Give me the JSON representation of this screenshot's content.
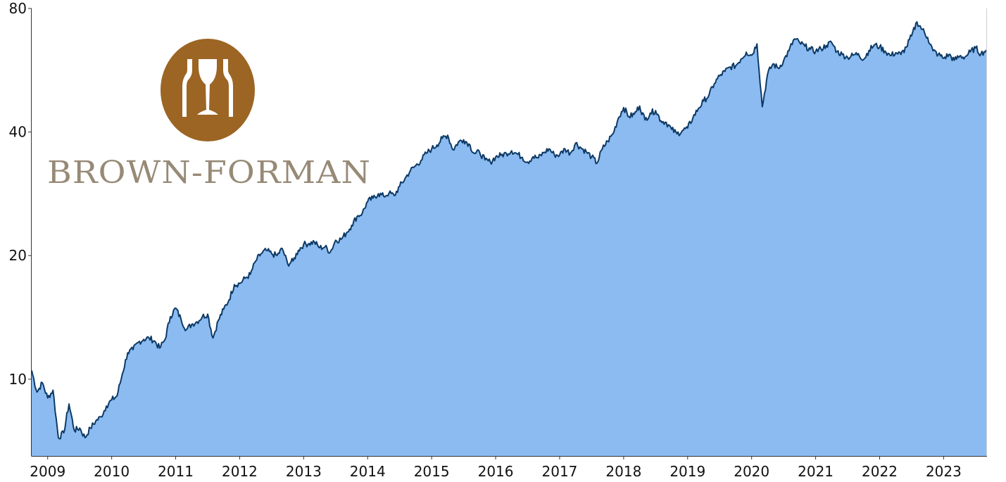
{
  "chart_data": {
    "type": "area",
    "title": "",
    "xlabel": "",
    "ylabel": "",
    "y_scale": "log",
    "ylim": [
      6.5,
      80
    ],
    "xlim": [
      "2008-10",
      "2023-09"
    ],
    "grid": false,
    "legend": "none",
    "y_ticks": [
      "10",
      "20",
      "40",
      "80"
    ],
    "x_ticks": [
      "2009",
      "2010",
      "2011",
      "2012",
      "2013",
      "2014",
      "2015",
      "2016",
      "2017",
      "2018",
      "2019",
      "2020",
      "2021",
      "2022",
      "2023"
    ],
    "colors": {
      "fill": "#8bbbf0",
      "line": "#0d3a66"
    },
    "series": [
      {
        "x": [
          "2008-10",
          "2008-11",
          "2008-12",
          "2009-01",
          "2009-02",
          "2009-03",
          "2009-04",
          "2009-05",
          "2009-06",
          "2009-07",
          "2009-08",
          "2009-09",
          "2009-10",
          "2009-11",
          "2009-12",
          "2010-01",
          "2010-02",
          "2010-03",
          "2010-04",
          "2010-05",
          "2010-06",
          "2010-07",
          "2010-08",
          "2010-09",
          "2010-10",
          "2010-11",
          "2010-12",
          "2011-01",
          "2011-02",
          "2011-03",
          "2011-04",
          "2011-05",
          "2011-06",
          "2011-07",
          "2011-08",
          "2011-09",
          "2011-10",
          "2011-11",
          "2011-12",
          "2012-01",
          "2012-02",
          "2012-03",
          "2012-04",
          "2012-05",
          "2012-06",
          "2012-07",
          "2012-08",
          "2012-09",
          "2012-10",
          "2012-11",
          "2012-12",
          "2013-01",
          "2013-02",
          "2013-03",
          "2013-04",
          "2013-05",
          "2013-06",
          "2013-07",
          "2013-08",
          "2013-09",
          "2013-10",
          "2013-11",
          "2013-12",
          "2014-01",
          "2014-02",
          "2014-03",
          "2014-04",
          "2014-05",
          "2014-06",
          "2014-07",
          "2014-08",
          "2014-09",
          "2014-10",
          "2014-11",
          "2014-12",
          "2015-01",
          "2015-02",
          "2015-03",
          "2015-04",
          "2015-05",
          "2015-06",
          "2015-07",
          "2015-08",
          "2015-09",
          "2015-10",
          "2015-11",
          "2015-12",
          "2016-01",
          "2016-02",
          "2016-03",
          "2016-04",
          "2016-05",
          "2016-06",
          "2016-07",
          "2016-08",
          "2016-09",
          "2016-10",
          "2016-11",
          "2016-12",
          "2017-01",
          "2017-02",
          "2017-03",
          "2017-04",
          "2017-05",
          "2017-06",
          "2017-07",
          "2017-08",
          "2017-09",
          "2017-10",
          "2017-11",
          "2017-12",
          "2018-01",
          "2018-02",
          "2018-03",
          "2018-04",
          "2018-05",
          "2018-06",
          "2018-07",
          "2018-08",
          "2018-09",
          "2018-10",
          "2018-11",
          "2018-12",
          "2019-01",
          "2019-02",
          "2019-03",
          "2019-04",
          "2019-05",
          "2019-06",
          "2019-07",
          "2019-08",
          "2019-09",
          "2019-10",
          "2019-11",
          "2019-12",
          "2020-01",
          "2020-02",
          "2020-03",
          "2020-04",
          "2020-05",
          "2020-06",
          "2020-07",
          "2020-08",
          "2020-09",
          "2020-10",
          "2020-11",
          "2020-12",
          "2021-01",
          "2021-02",
          "2021-03",
          "2021-04",
          "2021-05",
          "2021-06",
          "2021-07",
          "2021-08",
          "2021-09",
          "2021-10",
          "2021-11",
          "2021-12",
          "2022-01",
          "2022-02",
          "2022-03",
          "2022-04",
          "2022-05",
          "2022-06",
          "2022-07",
          "2022-08",
          "2022-09",
          "2022-10",
          "2022-11",
          "2022-12",
          "2023-01",
          "2023-02",
          "2023-03",
          "2023-04",
          "2023-05",
          "2023-06",
          "2023-07",
          "2023-08",
          "2023-09"
        ],
        "values": [
          10.5,
          9.3,
          9.8,
          9.0,
          9.4,
          7.2,
          7.4,
          8.7,
          7.5,
          7.6,
          7.2,
          7.6,
          7.9,
          8.1,
          8.6,
          8.9,
          9.1,
          10.3,
          11.6,
          11.8,
          12.3,
          12.5,
          12.6,
          12.4,
          11.9,
          12.5,
          14.2,
          14.9,
          14.0,
          13.2,
          13.6,
          13.8,
          14.2,
          14.4,
          12.6,
          13.9,
          14.8,
          15.6,
          17.0,
          17.1,
          17.6,
          18.0,
          19.4,
          20.2,
          20.6,
          20.2,
          20.0,
          20.8,
          19.1,
          19.4,
          20.6,
          21.3,
          21.4,
          21.6,
          20.9,
          21.0,
          20.4,
          21.8,
          21.9,
          22.7,
          23.7,
          24.9,
          25.4,
          27.1,
          27.6,
          28.3,
          27.9,
          28.4,
          28.0,
          29.5,
          30.8,
          32.2,
          33.1,
          34.1,
          35.5,
          36.4,
          37.2,
          38.6,
          39.3,
          36.2,
          37.8,
          38.3,
          37.4,
          35.5,
          35.7,
          34.2,
          33.8,
          34.8,
          35.1,
          35.5,
          36.0,
          35.4,
          34.7,
          33.8,
          34.8,
          34.6,
          35.6,
          36.4,
          35.2,
          35.2,
          36.4,
          35.5,
          37.6,
          36.6,
          35.8,
          34.8,
          33.6,
          36.4,
          38.0,
          39.6,
          43.2,
          45.9,
          43.6,
          44.2,
          46.3,
          42.8,
          44.5,
          45.1,
          42.6,
          42.2,
          40.6,
          39.6,
          40.3,
          40.9,
          43.4,
          45.6,
          47.6,
          49.2,
          52.5,
          54.8,
          56.2,
          57.6,
          58.0,
          60.2,
          62.6,
          61.5,
          65.6,
          46.1,
          55.4,
          58.6,
          57.2,
          59.7,
          63.1,
          67.4,
          66.0,
          64.7,
          63.6,
          62.9,
          63.8,
          65.0,
          66.1,
          62.8,
          61.8,
          60.8,
          61.5,
          62.1,
          60.1,
          63.2,
          65.2,
          64.5,
          63.0,
          61.4,
          62.4,
          61.8,
          64.4,
          68.6,
          74.2,
          71.1,
          68.0,
          63.1,
          61.8,
          60.5,
          61.8,
          59.8,
          61.2,
          60.9,
          62.7,
          64.1,
          62.0,
          63.4
        ]
      }
    ]
  },
  "logo": {
    "name": "BROWN-FORMAN",
    "colors": {
      "emblem": "#9c6524",
      "glyph": "#ffffff",
      "text": "#978a76"
    }
  }
}
